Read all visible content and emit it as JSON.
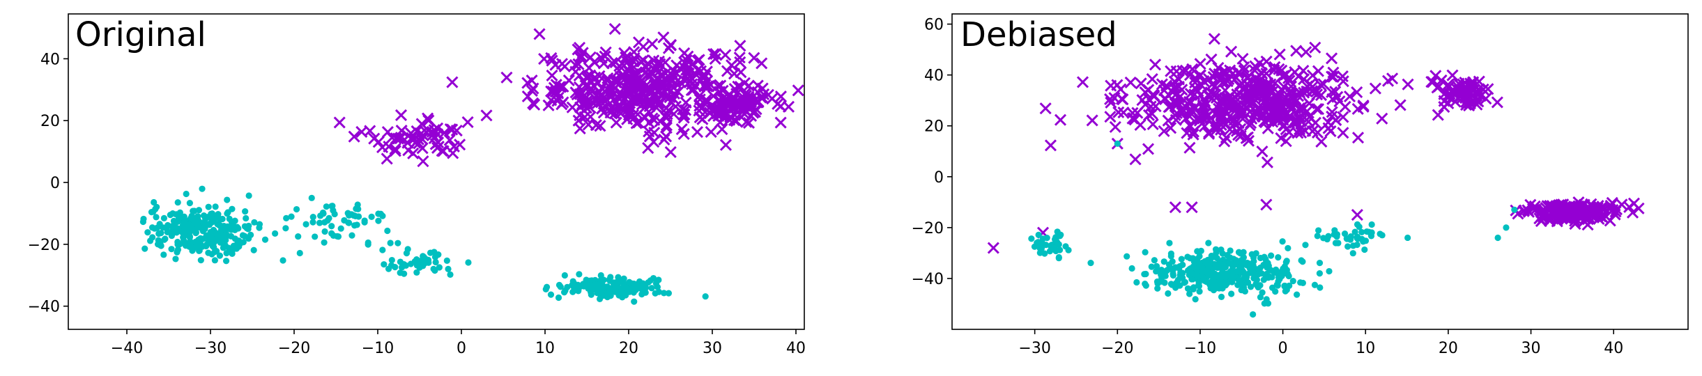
{
  "chart_data": [
    {
      "type": "scatter",
      "title": "Original",
      "xlabel": "",
      "ylabel": "",
      "xlim": [
        -47,
        41
      ],
      "ylim": [
        -47.5,
        54.5
      ],
      "xticks": [
        -40,
        -30,
        -20,
        -10,
        0,
        10,
        20,
        30,
        40
      ],
      "yticks": [
        -40,
        -20,
        0,
        20,
        40
      ],
      "xtick_labels": [
        "−40",
        "−30",
        "−20",
        "−10",
        "0",
        "10",
        "20",
        "30",
        "40"
      ],
      "ytick_labels": [
        "−40",
        "−20",
        "0",
        "20",
        "40"
      ],
      "grid": false,
      "series": [
        {
          "marker": "x",
          "color": "#9400d3",
          "clusters": [
            {
              "center": [
                22,
                30
              ],
              "spread": [
                12,
                12
              ],
              "count": 420
            },
            {
              "center": [
                33,
                25
              ],
              "spread": [
                3.5,
                4.5
              ],
              "count": 70
            },
            {
              "center": [
                -5,
                15
              ],
              "spread": [
                6,
                6
              ],
              "count": 60
            }
          ]
        },
        {
          "marker": "o",
          "color": "#00bfbf",
          "clusters": [
            {
              "center": [
                -31,
                -16
              ],
              "spread": [
                6,
                8
              ],
              "count": 260
            },
            {
              "center": [
                -15,
                -13
              ],
              "spread": [
                6,
                6
              ],
              "count": 60
            },
            {
              "center": [
                -5,
                -26
              ],
              "spread": [
                4,
                4
              ],
              "count": 45
            },
            {
              "center": [
                18,
                -34
              ],
              "spread": [
                6,
                3
              ],
              "count": 160
            }
          ]
        }
      ]
    },
    {
      "type": "scatter",
      "title": "Debiased",
      "xlabel": "",
      "ylabel": "",
      "xlim": [
        -40,
        49
      ],
      "ylim": [
        -60,
        64
      ],
      "xticks": [
        -30,
        -20,
        -10,
        0,
        10,
        20,
        30,
        40
      ],
      "yticks": [
        -40,
        -20,
        0,
        20,
        40,
        60
      ],
      "xtick_labels": [
        "−30",
        "−20",
        "−10",
        "0",
        "10",
        "20",
        "30",
        "40"
      ],
      "ytick_labels": [
        "−40",
        "−20",
        "0",
        "20",
        "40",
        "60"
      ],
      "grid": false,
      "series": [
        {
          "marker": "x",
          "color": "#9400d3",
          "clusters": [
            {
              "center": [
                -5,
                30
              ],
              "spread": [
                13,
                14
              ],
              "count": 460
            },
            {
              "center": [
                21,
                33
              ],
              "spread": [
                3.5,
                5
              ],
              "count": 70
            },
            {
              "center": [
                35,
                -14
              ],
              "spread": [
                5,
                3
              ],
              "count": 200
            }
          ],
          "points": [
            [
              -35,
              -28
            ],
            [
              -29,
              -22
            ],
            [
              -20,
              13
            ],
            [
              -13,
              -12
            ],
            [
              -11,
              -12
            ],
            [
              -2,
              -11
            ],
            [
              9,
              -15
            ]
          ]
        },
        {
          "marker": "o",
          "color": "#00bfbf",
          "clusters": [
            {
              "center": [
                -7,
                -38
              ],
              "spread": [
                9,
                8
              ],
              "count": 360
            },
            {
              "center": [
                -28,
                -27
              ],
              "spread": [
                2.5,
                5
              ],
              "count": 35
            },
            {
              "center": [
                9,
                -24
              ],
              "spread": [
                4,
                5
              ],
              "count": 40
            }
          ],
          "points": [
            [
              -20,
              13
            ],
            [
              26,
              -24
            ],
            [
              27,
              -20
            ],
            [
              28,
              -13
            ]
          ]
        }
      ]
    }
  ]
}
